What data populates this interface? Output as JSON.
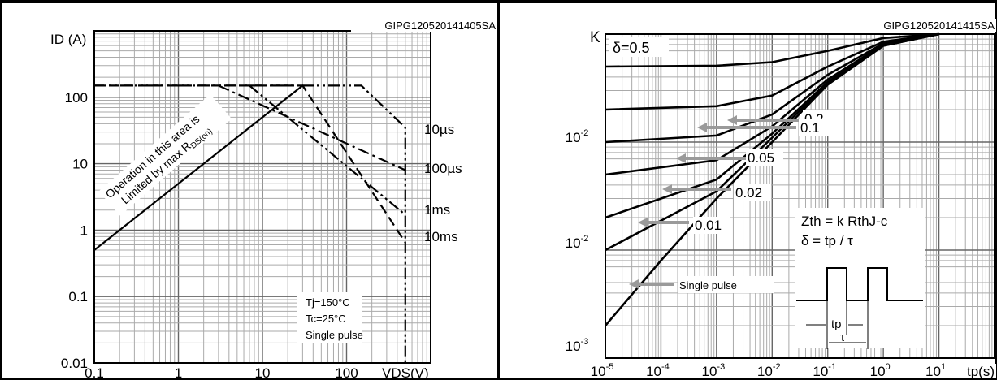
{
  "chart_data": [
    {
      "type": "line",
      "title": "",
      "code": "GIPG120520141405SA",
      "xscale": "log",
      "yscale": "log",
      "xlim": [
        0.1,
        1000
      ],
      "ylim": [
        0.01,
        1000
      ],
      "xlabel": "VDS(V)",
      "ylabel": "ID (A)",
      "x_ticks": [
        "0.1",
        "1",
        "10",
        "100"
      ],
      "y_ticks": [
        "0.01",
        "0.1",
        "1",
        "10",
        "100"
      ],
      "grid": true,
      "series": [
        {
          "name": "",
          "style": "solid",
          "points": [
            [
              0.1,
              0.5
            ],
            [
              30,
              150
            ]
          ]
        },
        {
          "name": "10µs",
          "style": "dash-dot-dot",
          "points": [
            [
              0.1,
              150
            ],
            [
              150,
              150
            ],
            [
              500,
              35
            ],
            [
              500,
              0.01
            ]
          ]
        },
        {
          "name": "100µs",
          "style": "dash-dot",
          "points": [
            [
              3,
              150
            ],
            [
              500,
              8
            ]
          ]
        },
        {
          "name": "1ms",
          "style": "dash-dot-dot",
          "points": [
            [
              7,
              150
            ],
            [
              500,
              1.7
            ]
          ]
        },
        {
          "name": "10ms",
          "style": "dashed",
          "points": [
            [
              0.1,
              150
            ],
            [
              30,
              150
            ],
            [
              500,
              0.65
            ]
          ]
        }
      ],
      "annotations": {
        "region_text_line1": "Operation in this area is",
        "region_text_line2_prefix": "Limited by max R",
        "region_text_line2_sub": "DS(on)",
        "conditions": [
          "Tj=150°C",
          "Tc=25°C",
          "Single pulse"
        ]
      }
    },
    {
      "type": "line",
      "title": "",
      "code": "GIPG120520141415SA",
      "xscale": "log",
      "yscale": "log",
      "xlim": [
        1e-05,
        100
      ],
      "ylim": [
        0.001,
        1
      ],
      "xlabel": "tp(s)",
      "ylabel": "K",
      "x_ticks": [
        "10-5",
        "10-4",
        "10-3",
        "10-2",
        "10-1",
        "100",
        "101"
      ],
      "y_ticks": [
        "10-2",
        "10-2",
        "10-3"
      ],
      "grid": true,
      "series": [
        {
          "name": "δ=0.5",
          "points": [
            [
              1e-05,
              0.5
            ],
            [
              0.001,
              0.51
            ],
            [
              0.01,
              0.55
            ],
            [
              0.1,
              0.7
            ],
            [
              1,
              0.92
            ],
            [
              10,
              1
            ]
          ]
        },
        {
          "name": "0.2",
          "points": [
            [
              1e-05,
              0.2
            ],
            [
              0.001,
              0.215
            ],
            [
              0.01,
              0.27
            ],
            [
              0.1,
              0.5
            ],
            [
              1,
              0.85
            ],
            [
              10,
              1
            ]
          ]
        },
        {
          "name": "0.1",
          "points": [
            [
              1e-05,
              0.1
            ],
            [
              0.001,
              0.115
            ],
            [
              0.01,
              0.18
            ],
            [
              0.1,
              0.42
            ],
            [
              1,
              0.82
            ],
            [
              10,
              1
            ]
          ]
        },
        {
          "name": "0.05",
          "points": [
            [
              1e-05,
              0.05
            ],
            [
              0.001,
              0.068
            ],
            [
              0.01,
              0.14
            ],
            [
              0.1,
              0.38
            ],
            [
              1,
              0.8
            ],
            [
              10,
              1
            ]
          ]
        },
        {
          "name": "0.02",
          "points": [
            [
              1e-05,
              0.02
            ],
            [
              0.001,
              0.045
            ],
            [
              0.01,
              0.12
            ],
            [
              0.1,
              0.36
            ],
            [
              1,
              0.79
            ],
            [
              10,
              1
            ]
          ]
        },
        {
          "name": "0.01",
          "points": [
            [
              1e-05,
              0.01
            ],
            [
              0.001,
              0.035
            ],
            [
              0.01,
              0.11
            ],
            [
              0.1,
              0.35
            ],
            [
              1,
              0.78
            ],
            [
              10,
              1
            ]
          ]
        },
        {
          "name": "Single pulse",
          "points": [
            [
              1e-05,
              0.002
            ],
            [
              0.0001,
              0.008
            ],
            [
              0.001,
              0.03
            ],
            [
              0.01,
              0.1
            ],
            [
              0.1,
              0.34
            ],
            [
              1,
              0.78
            ],
            [
              10,
              1
            ]
          ]
        }
      ],
      "annotations": {
        "formula1": "Zth = k RthJ-c",
        "formula2": "δ = tp / τ",
        "tp_label": "tp",
        "tau_label": "τ"
      }
    }
  ]
}
